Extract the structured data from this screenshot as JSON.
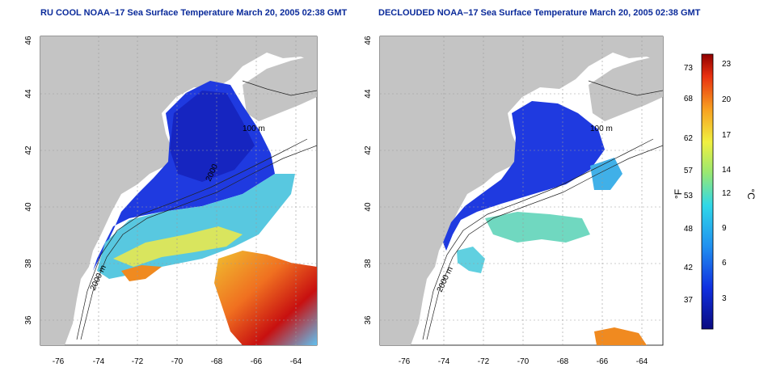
{
  "titles": {
    "left": "RU COOL NOAA–17 Sea Surface Temperature March 20, 2005 02:38 GMT",
    "right": "DECLOUDED NOAA–17 Sea Surface Temperature March 20, 2005 02:38 GMT"
  },
  "axes": {
    "lat_ticks": [
      "46",
      "44",
      "42",
      "40",
      "38",
      "36"
    ],
    "lon_ticks": [
      "-76",
      "-74",
      "-72",
      "-70",
      "-68",
      "-66",
      "-64"
    ]
  },
  "contours": {
    "left": [
      "100 m",
      "2000 m",
      "2000"
    ],
    "right": [
      "100 m",
      "2000 m"
    ]
  },
  "colorbar": {
    "unit_f": "°F",
    "unit_c": "°C",
    "f_ticks": [
      "73",
      "68",
      "62",
      "57",
      "53",
      "48",
      "42",
      "37"
    ],
    "c_ticks": [
      "23",
      "20",
      "17",
      "14",
      "12",
      "9",
      "6",
      "3"
    ]
  },
  "colors": {
    "land": "#c4c4c4",
    "ocean_blank": "#ffffff",
    "cold": "#1f2ad6",
    "warm": "#e02010",
    "title": "#0a2a9a"
  }
}
